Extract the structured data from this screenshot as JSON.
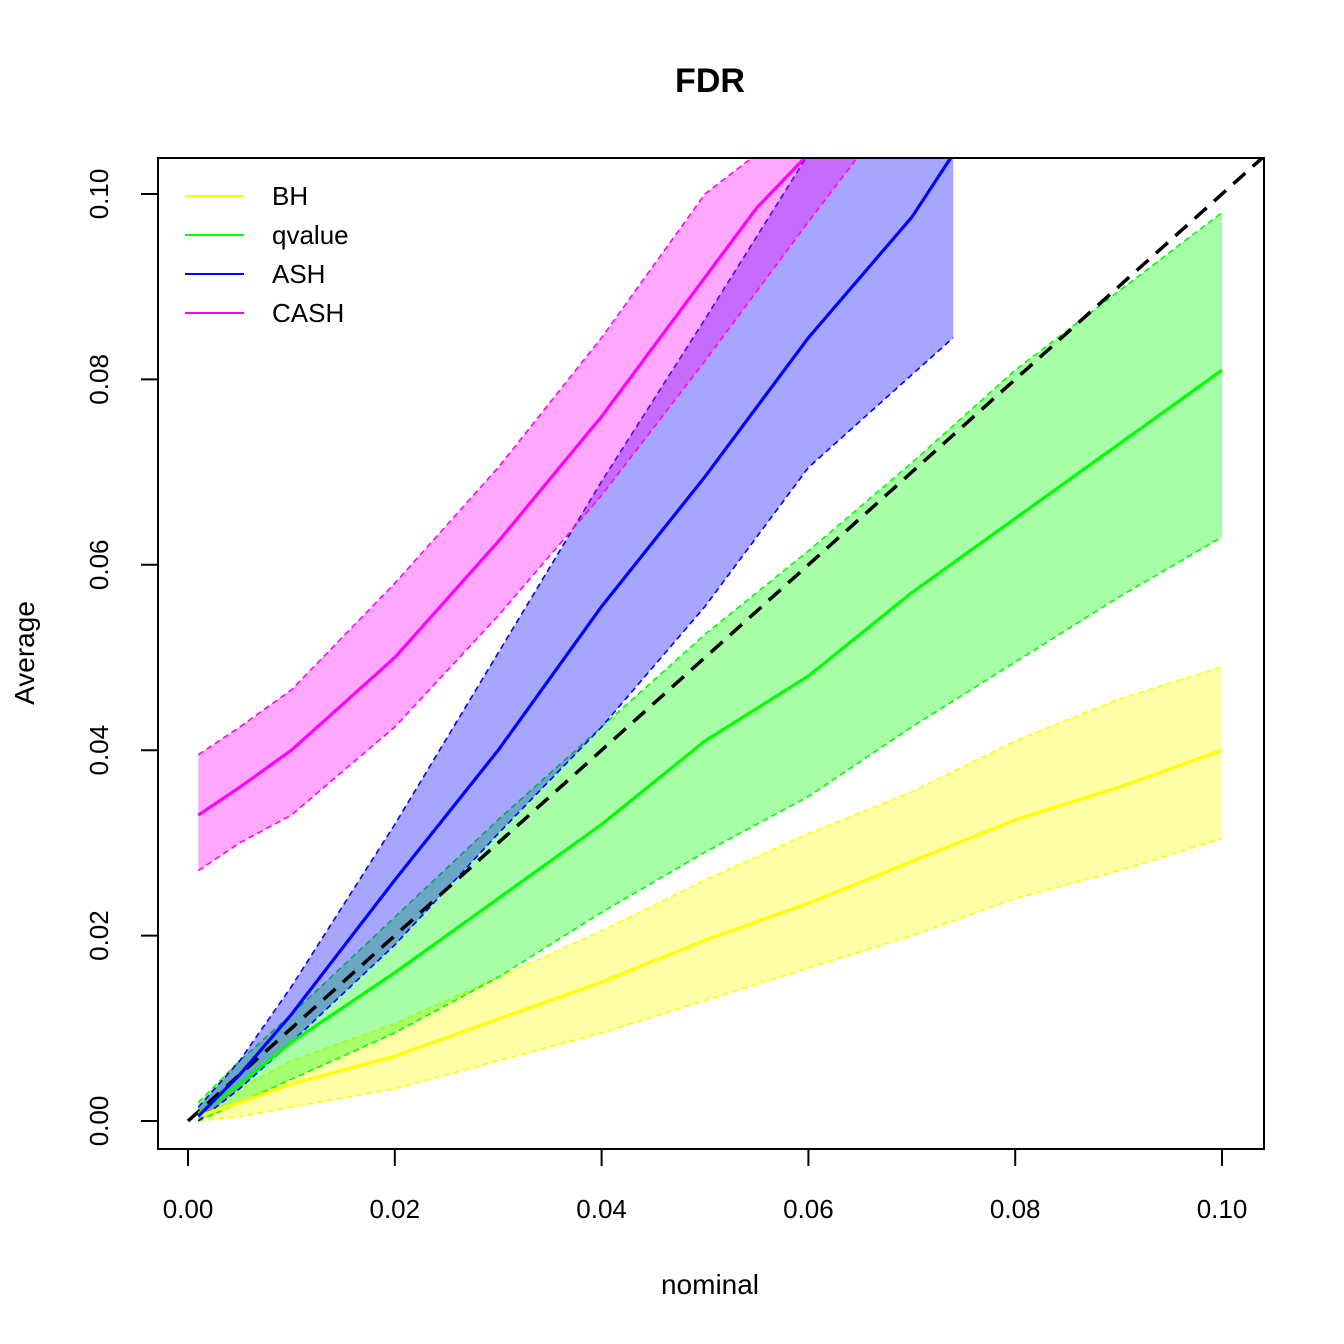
{
  "chart_data": {
    "type": "line",
    "title": "FDR",
    "xlabel": "nominal",
    "ylabel": "Average",
    "xlim": [
      0.0,
      0.1
    ],
    "ylim": [
      0.0,
      0.1
    ],
    "x_ticks": [
      "0.00",
      "0.02",
      "0.04",
      "0.06",
      "0.08",
      "0.10"
    ],
    "y_ticks": [
      "0.00",
      "0.02",
      "0.04",
      "0.06",
      "0.08",
      "0.10"
    ],
    "grid": false,
    "legend_position": "top-left",
    "reference_line": {
      "style": "dashed",
      "color": "#000000",
      "x": [
        0.0,
        0.104
      ],
      "y": [
        0.0,
        0.104
      ]
    },
    "series": [
      {
        "name": "BH",
        "color": "#ffff00",
        "x": [
          0.001,
          0.005,
          0.01,
          0.02,
          0.03,
          0.04,
          0.05,
          0.06,
          0.07,
          0.08,
          0.09,
          0.1
        ],
        "mean": [
          0.0005,
          0.002,
          0.004,
          0.007,
          0.011,
          0.015,
          0.0195,
          0.0235,
          0.028,
          0.0325,
          0.036,
          0.04
        ],
        "lower": [
          0.0,
          0.0005,
          0.0015,
          0.0035,
          0.0065,
          0.0095,
          0.013,
          0.0165,
          0.02,
          0.024,
          0.027,
          0.0305
        ],
        "upper": [
          0.001,
          0.0035,
          0.0065,
          0.0105,
          0.0155,
          0.0205,
          0.026,
          0.031,
          0.0355,
          0.041,
          0.0455,
          0.049
        ]
      },
      {
        "name": "qvalue",
        "color": "#00ff00",
        "x": [
          0.001,
          0.005,
          0.01,
          0.02,
          0.03,
          0.04,
          0.05,
          0.06,
          0.07,
          0.08,
          0.09,
          0.1
        ],
        "mean": [
          0.0008,
          0.004,
          0.0085,
          0.016,
          0.024,
          0.032,
          0.041,
          0.048,
          0.057,
          0.065,
          0.073,
          0.081
        ],
        "lower": [
          0.0,
          0.002,
          0.0045,
          0.0095,
          0.0155,
          0.0225,
          0.029,
          0.035,
          0.0425,
          0.0495,
          0.0565,
          0.063
        ],
        "upper": [
          0.002,
          0.0065,
          0.0115,
          0.022,
          0.0325,
          0.0425,
          0.0525,
          0.0615,
          0.071,
          0.081,
          0.0895,
          0.098
        ]
      },
      {
        "name": "ASH",
        "color": "#0000ff",
        "x": [
          0.001,
          0.005,
          0.01,
          0.02,
          0.03,
          0.04,
          0.05,
          0.06,
          0.07,
          0.074
        ],
        "mean": [
          0.0005,
          0.005,
          0.0115,
          0.026,
          0.04,
          0.0555,
          0.0695,
          0.0845,
          0.0975,
          0.1043
        ],
        "lower": [
          0.0,
          0.0035,
          0.0085,
          0.019,
          0.031,
          0.0425,
          0.0555,
          0.0705,
          0.0805,
          0.0845
        ],
        "upper": [
          0.0015,
          0.0065,
          0.0145,
          0.032,
          0.0505,
          0.069,
          0.0865,
          0.1043,
          0.1043,
          0.1043
        ]
      },
      {
        "name": "CASH",
        "color": "#ff00ff",
        "x": [
          0.001,
          0.005,
          0.01,
          0.02,
          0.03,
          0.04,
          0.05,
          0.055,
          0.06,
          0.065
        ],
        "mean": [
          0.033,
          0.036,
          0.04,
          0.05,
          0.0625,
          0.076,
          0.091,
          0.0985,
          0.1043,
          0.1043
        ],
        "lower": [
          0.027,
          0.03,
          0.033,
          0.0425,
          0.0545,
          0.0675,
          0.082,
          0.0895,
          0.097,
          0.1043
        ],
        "upper": [
          0.0395,
          0.0425,
          0.0465,
          0.058,
          0.0705,
          0.0845,
          0.1,
          0.1043,
          0.1043,
          0.1043
        ]
      }
    ]
  }
}
